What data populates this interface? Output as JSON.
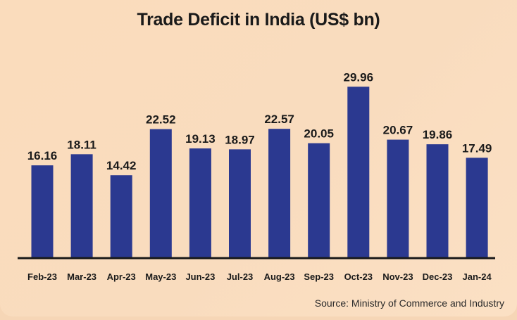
{
  "chart_data": {
    "type": "bar",
    "title": "Trade Deficit in India (US$ bn)",
    "categories": [
      "Feb-23",
      "Mar-23",
      "Apr-23",
      "May-23",
      "Jun-23",
      "Jul-23",
      "Aug-23",
      "Sep-23",
      "Oct-23",
      "Nov-23",
      "Dec-23",
      "Jan-24"
    ],
    "values": [
      16.16,
      18.11,
      14.42,
      22.52,
      19.13,
      18.97,
      22.57,
      20.05,
      29.96,
      20.67,
      19.86,
      17.49
    ],
    "data_labels": [
      "16.16",
      "18.11",
      "14.42",
      "22.52",
      "19.13",
      "18.97",
      "22.57",
      "20.05",
      "29.96",
      "20.67",
      "19.86",
      "17.49"
    ],
    "xlabel": "",
    "ylabel": "",
    "ylim": [
      0,
      30
    ],
    "grid": false,
    "bar_color": "#2b3990",
    "source": "Source: Ministry of Commerce and Industry"
  }
}
